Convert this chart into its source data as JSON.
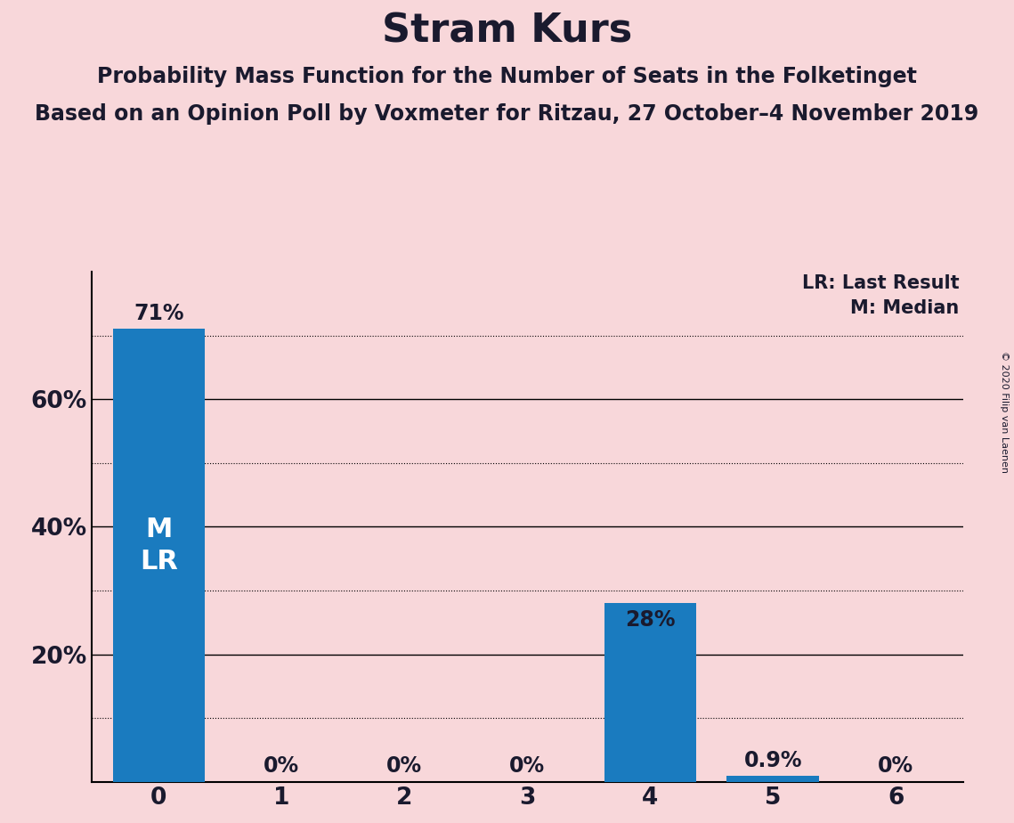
{
  "title": "Stram Kurs",
  "subtitle1": "Probability Mass Function for the Number of Seats in the Folketinget",
  "subtitle2": "Based on an Opinion Poll by Voxmeter for Ritzau, 27 October–4 November 2019",
  "copyright": "© 2020 Filip van Laenen",
  "categories": [
    0,
    1,
    2,
    3,
    4,
    5,
    6
  ],
  "values": [
    71.0,
    0.0,
    0.0,
    0.0,
    28.0,
    0.9,
    0.0
  ],
  "labels": [
    "71%",
    "0%",
    "0%",
    "0%",
    "28%",
    "0.9%",
    "0%"
  ],
  "bar_color": "#1a7bbf",
  "background_color": "#f8d7da",
  "ylim_max": 80,
  "solid_gridlines": [
    20,
    40,
    60
  ],
  "dotted_gridlines": [
    10,
    30,
    50,
    70
  ],
  "ytick_positions": [
    20,
    40,
    60
  ],
  "ytick_labels": [
    "20%",
    "40%",
    "60%"
  ],
  "legend_lr": "LR: Last Result",
  "legend_m": "M: Median",
  "label_fontsize": 17,
  "tick_fontsize": 19,
  "title_fontsize": 32,
  "subtitle_fontsize": 17,
  "mlr_fontsize": 22,
  "legend_fontsize": 15,
  "bar_label_color_inside": "#ffffff",
  "bar_label_color_outside": "#1a1a2e",
  "text_color": "#1a1a2e",
  "copyright_fontsize": 8
}
